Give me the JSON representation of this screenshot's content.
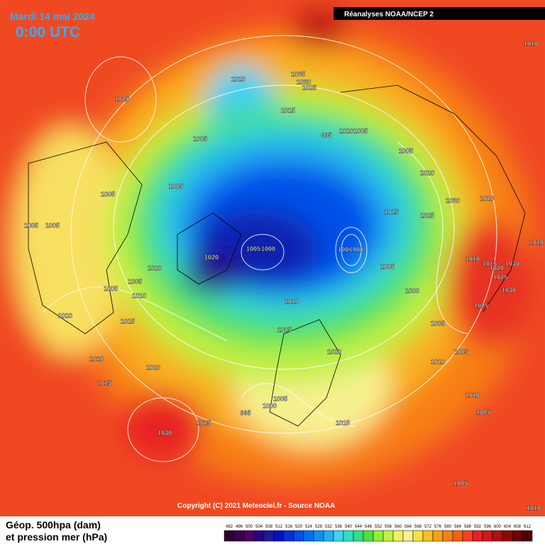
{
  "header": {
    "date": "Mardi 14 mai 2024",
    "time": "0:00 UTC",
    "source": "Réanalyses NOAA/NCEP 2"
  },
  "isobar_labels": [
    1010,
    1020,
    1035,
    1030,
    1025,
    1025,
    1015,
    995,
    1010,
    1005,
    1005,
    1005,
    1020,
    1005,
    1005,
    1030,
    1010,
    1015,
    1025,
    1005,
    1005,
    1005,
    1000,
    1000,
    1000,
    1010,
    1020,
    1010,
    1015,
    1020,
    1030,
    1005,
    1020,
    1005,
    1025,
    1005,
    1010,
    1000,
    1030,
    1010,
    1025,
    1020,
    1015,
    1005,
    1005,
    1020,
    1005,
    1010,
    1010,
    1020,
    1015,
    1010,
    1005,
    1000,
    995,
    1005,
    1015,
    1025,
    1030,
    1005,
    1010
  ],
  "footer": {
    "copyright": "Copyright (C) 2021 Meteociel.fr - Source NOAA",
    "legend_line1": "Géop. 500hpa (dam)",
    "legend_line2": "et pression mer (hPa)"
  },
  "color_scale": {
    "ticks": [
      492,
      496,
      500,
      504,
      508,
      512,
      516,
      520,
      524,
      528,
      532,
      536,
      540,
      544,
      548,
      552,
      556,
      560,
      564,
      568,
      572,
      576,
      580,
      584,
      588,
      592,
      596,
      600,
      604,
      608,
      612
    ],
    "colors": [
      "#2b0030",
      "#3c0050",
      "#4b006b",
      "#2a0080",
      "#1a1aa0",
      "#0010c0",
      "#0030d8",
      "#0050e8",
      "#0070f0",
      "#0a90f0",
      "#20b0f0",
      "#40d0f0",
      "#30e0c0",
      "#30e080",
      "#50e040",
      "#90f030",
      "#c0f040",
      "#f0f060",
      "#f8f090",
      "#f8e040",
      "#f8c020",
      "#f8a010",
      "#f88010",
      "#f86010",
      "#f84020",
      "#e82020",
      "#d01818",
      "#b01010",
      "#900808",
      "#700000",
      "#500000"
    ]
  }
}
